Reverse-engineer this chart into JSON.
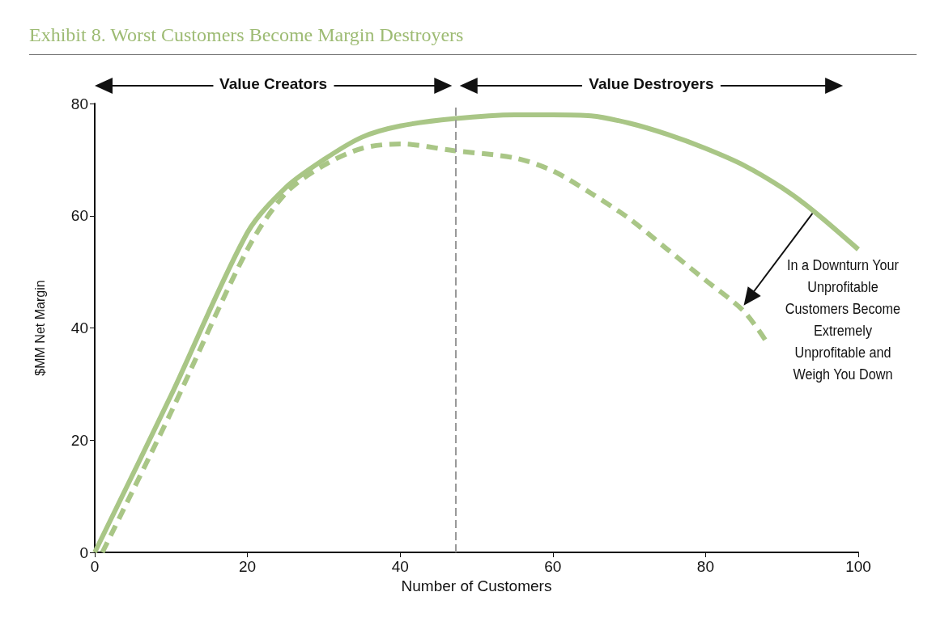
{
  "chart_data": {
    "type": "line",
    "title": "Exhibit 8. Worst Customers Become Margin Destroyers",
    "xlabel": "Number of Customers",
    "ylabel": "$MM Net Margin",
    "xlim": [
      0,
      100
    ],
    "xticks": [
      0,
      20,
      40,
      60,
      80,
      100
    ],
    "ylim": [
      0,
      80
    ],
    "yticks": [
      0,
      20,
      40,
      60,
      80
    ],
    "grid": false,
    "marker": "none",
    "series": [
      {
        "color": "#a9c686",
        "line_style": "solid",
        "x": [
          0,
          10,
          20,
          25,
          30,
          35,
          40,
          47,
          55,
          60,
          65,
          70,
          75,
          80,
          85,
          90,
          94,
          100
        ],
        "values": [
          0,
          28,
          57,
          65,
          70,
          74,
          76,
          77.3,
          78,
          78,
          77.8,
          76.5,
          74.5,
          72,
          69,
          65,
          61,
          54
        ]
      },
      {
        "color": "#a9c686",
        "line_style": "dashed",
        "x": [
          1,
          10,
          20,
          25,
          30,
          35,
          40,
          47,
          55,
          60,
          65,
          70,
          75,
          80,
          85,
          88
        ],
        "values": [
          0,
          25,
          54,
          64,
          69,
          72,
          72.8,
          71.6,
          70.3,
          68,
          64,
          59.5,
          54,
          48.5,
          43,
          37.5
        ]
      }
    ],
    "ref_lines": [
      {
        "axis": "x",
        "value": 47.3,
        "color": "#999999",
        "line_style": "dashed"
      }
    ],
    "annotations": [
      "Value Creators",
      "Value Destroyers",
      {
        "text": "In a Downturn Your Unprofitable Customers Become Extremely Unprofitable and Weigh You Down",
        "x": 85,
        "y": 44
      }
    ]
  }
}
